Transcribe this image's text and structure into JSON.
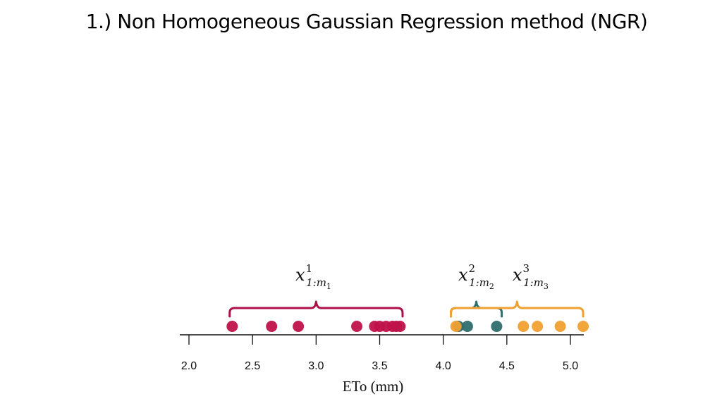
{
  "title": "1.) Non Homogeneous Gaussian Regression method (NGR)",
  "chart_data": {
    "type": "scatter",
    "xlabel": "ETo (mm)",
    "xlim": [
      1.95,
      5.1
    ],
    "ticks": [
      "2.0",
      "2.5",
      "3.0",
      "3.5",
      "4.0",
      "4.5",
      "5.0"
    ],
    "series": [
      {
        "name": "x^1_{1:m_1}",
        "color": "#c0124a",
        "values": [
          2.34,
          2.65,
          2.86,
          3.32,
          3.46,
          3.5,
          3.55,
          3.6,
          3.63,
          3.66
        ]
      },
      {
        "name": "x^2_{1:m_2}",
        "color": "#2e6e6e",
        "values": [
          4.12,
          4.19,
          4.42
        ]
      },
      {
        "name": "x^3_{1:m_3}",
        "color": "#f0a030",
        "values": [
          4.1,
          4.63,
          4.74,
          4.92,
          5.1
        ]
      }
    ],
    "annotations": [
      {
        "series": 0,
        "color": "#b0104a",
        "base": "x",
        "sup": "1",
        "sub": "1:m",
        "subsub": "1",
        "range": [
          2.32,
          3.68
        ]
      },
      {
        "series": 1,
        "color": "#2e6e6e",
        "base": "x",
        "sup": "2",
        "sub": "1:m",
        "subsub": "2",
        "range": [
          4.06,
          4.46
        ]
      },
      {
        "series": 2,
        "color": "#f0a030",
        "base": "x",
        "sup": "3",
        "sub": "1:m",
        "subsub": "3",
        "range": [
          4.06,
          5.1
        ]
      }
    ]
  }
}
